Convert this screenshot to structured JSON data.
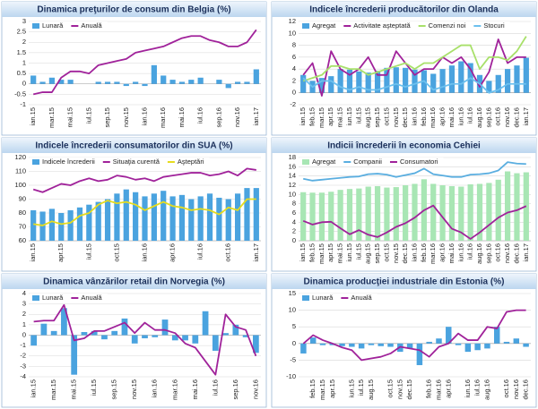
{
  "chart_data": [
    {
      "type": "bar-line",
      "title": "Dinamica preţurilor de consum din Belgia (%)",
      "categories": [
        "ian.15",
        null,
        "mar.15",
        null,
        "mai.15",
        null,
        "iul.15",
        null,
        "sep.15",
        null,
        "nov.15",
        null,
        "ian.16",
        null,
        "mar.16",
        null,
        "mai.16",
        null,
        "iul.16",
        null,
        "sep.16",
        null,
        "nov.16",
        null,
        "ian.17"
      ],
      "series": [
        {
          "name": "Lunară",
          "type": "bar",
          "color": "#4aa3df",
          "values": [
            0.4,
            0.1,
            0.3,
            0.2,
            0.2,
            0.0,
            0.0,
            0.1,
            0.1,
            0.1,
            -0.1,
            0.1,
            -0.1,
            0.9,
            0.4,
            0.2,
            0.1,
            0.2,
            0.3,
            0.0,
            0.2,
            -0.2,
            0.1,
            0.1,
            0.7
          ]
        },
        {
          "name": "Anuală",
          "type": "line",
          "color": "#a0229a",
          "values": [
            -0.5,
            -0.4,
            -0.4,
            0.3,
            0.6,
            0.6,
            0.5,
            0.9,
            1.0,
            1.1,
            1.2,
            1.5,
            1.6,
            1.7,
            1.8,
            2.0,
            2.2,
            2.3,
            2.3,
            2.1,
            2.0,
            1.8,
            1.8,
            2.0,
            2.6
          ]
        }
      ],
      "ylim": [
        -1,
        3
      ],
      "yticks": [
        -1,
        -0.5,
        0,
        0.5,
        1,
        1.5,
        2,
        2.5,
        3
      ],
      "grid": true
    },
    {
      "type": "bar-line",
      "title": "Indicele încrederii producătorilor din Olanda",
      "categories": [
        "ian.15",
        "feb.15",
        "mar.15",
        "apr.15",
        "mai.15",
        "iun.15",
        "iul.15",
        "aug.15",
        "sep.15",
        "oct.15",
        "nov.15",
        "dec.15",
        "ian.16",
        "feb.16",
        "mar.16",
        "apr.16",
        "mai.16",
        "iun.16",
        "iul.16",
        "aug.16",
        "sep.16",
        "oct.16",
        "nov.16",
        "dec.16",
        "ian.17"
      ],
      "series": [
        {
          "name": "Agregat",
          "type": "bar",
          "color": "#4aa3df",
          "values": [
            3.0,
            2.0,
            2.5,
            2.8,
            4.0,
            3.9,
            3.6,
            3.4,
            3.7,
            4.2,
            4.3,
            4.2,
            3.9,
            3.8,
            3.2,
            4.0,
            4.6,
            5.3,
            5.0,
            3.0,
            2.0,
            3.0,
            4.0,
            4.6,
            5.9
          ]
        },
        {
          "name": "Activitate aşteptată",
          "type": "line",
          "color": "#a0229a",
          "values": [
            3,
            5,
            -0.5,
            7,
            4,
            3,
            4,
            6,
            3,
            3,
            7,
            5,
            3,
            4,
            4,
            6,
            5,
            6,
            4,
            1,
            3.5,
            9,
            5,
            6,
            6
          ]
        },
        {
          "name": "Comenzi noi",
          "type": "line",
          "color": "#a8e06a",
          "values": [
            2,
            2.5,
            3,
            4.5,
            4.5,
            4,
            4,
            3,
            3.5,
            4,
            4.5,
            5,
            4,
            5,
            5,
            6,
            7,
            8,
            8,
            4,
            6,
            6,
            5.5,
            7,
            9.5
          ]
        },
        {
          "name": "Stocuri",
          "type": "line",
          "color": "#6cc0ee",
          "values": [
            2.5,
            1,
            2,
            2,
            1,
            0.5,
            1,
            0.5,
            0.5,
            1,
            1.5,
            1,
            1.5,
            2,
            0.5,
            1,
            1.5,
            1.5,
            2.5,
            1.5,
            0,
            0.5,
            1.5,
            1.5,
            1.5
          ]
        }
      ],
      "ylim": [
        -2,
        12
      ],
      "yticks": [
        -2,
        0,
        2,
        4,
        6,
        8,
        10,
        12
      ],
      "grid": true
    },
    {
      "type": "bar-line",
      "title": "Indicele încrederii consumatorilor din SUA (%)",
      "categories": [
        "ian.15",
        null,
        null,
        "apr.15",
        null,
        null,
        "iul.15",
        null,
        null,
        "oct.15",
        null,
        null,
        "ian.16",
        null,
        null,
        "apr.16",
        null,
        null,
        "iul.16",
        null,
        null,
        "oct.16",
        null,
        null,
        "ian.17"
      ],
      "series": [
        {
          "name": "Indicele încrederii",
          "type": "bar",
          "color": "#4aa3df",
          "values": [
            82,
            81,
            83,
            80,
            82,
            84,
            86,
            88,
            90,
            94,
            97,
            95,
            92,
            94,
            96,
            92,
            93,
            90,
            92,
            94,
            91,
            90,
            94,
            98,
            98
          ]
        },
        {
          "name": "Situaţia curentă",
          "type": "line",
          "color": "#a0229a",
          "values": [
            97,
            95,
            98,
            101,
            100,
            103,
            105,
            103,
            104,
            107,
            106,
            104,
            105,
            103,
            106,
            107,
            108,
            109,
            109,
            107,
            108,
            110,
            107,
            112,
            111
          ]
        },
        {
          "name": "Aşteptări",
          "type": "line",
          "color": "#e6dc1e",
          "values": [
            72,
            71,
            74,
            72,
            73,
            78,
            80,
            86,
            89,
            87,
            88,
            86,
            82,
            85,
            88,
            85,
            84,
            82,
            83,
            82,
            79,
            84,
            82,
            90,
            90
          ]
        }
      ],
      "ylim": [
        60,
        120
      ],
      "yticks": [
        60,
        70,
        80,
        90,
        100,
        110,
        120
      ],
      "grid": true
    },
    {
      "type": "bar-line",
      "title": "Indicii încrederii în economia Cehiei",
      "categories": [
        "ian.15",
        "feb.15",
        "mar.15",
        "apr.15",
        "mai.15",
        "iun.15",
        "iul.15",
        "aug.15",
        "sep.15",
        "oct.15",
        "nov.15",
        "dec.15",
        "ian.16",
        "feb.16",
        "mar.16",
        "apr.16",
        "mai.16",
        "iun.16",
        "iul.16",
        "aug.16",
        "sep.16",
        "oct.16",
        "nov.16",
        "dec.16",
        "ian.17"
      ],
      "series": [
        {
          "name": "Agregat",
          "type": "bar",
          "color": "#a8e6b4",
          "values": [
            10.5,
            10.4,
            10.4,
            10.6,
            11,
            11.2,
            11.3,
            11.7,
            11.8,
            11.5,
            11.6,
            12,
            12.3,
            13.3,
            12.3,
            12,
            11.8,
            11.7,
            12.2,
            12.3,
            12.5,
            13.2,
            15,
            14.6,
            14.8
          ]
        },
        {
          "name": "Companii",
          "type": "line",
          "color": "#5aaee0",
          "values": [
            13.4,
            13,
            13.2,
            13.4,
            13.6,
            13.8,
            13.9,
            14.4,
            14.5,
            14.3,
            13.8,
            14.2,
            14.6,
            15.6,
            14.4,
            14.1,
            13.8,
            13.8,
            14.3,
            14.4,
            14.6,
            15.2,
            17,
            16.7,
            16.6
          ]
        },
        {
          "name": "Consumatori",
          "type": "line",
          "color": "#a0229a",
          "values": [
            4.3,
            3.5,
            4,
            4.1,
            2.7,
            1.4,
            2.3,
            1.3,
            0.8,
            1.8,
            3,
            3.8,
            5,
            6.6,
            7.6,
            5.1,
            2.6,
            1.8,
            0.4,
            1.8,
            3.4,
            5,
            6.1,
            6.6,
            7.5
          ]
        }
      ],
      "ylim": [
        0,
        18
      ],
      "yticks": [
        0,
        2,
        4,
        6,
        8,
        10,
        12,
        14,
        16,
        18
      ],
      "grid": true
    },
    {
      "type": "bar-line",
      "title": "Dinamica vânzărilor retail din Norvegia (%)",
      "categories": [
        "ian.15",
        null,
        "mar.15",
        null,
        "mai.15",
        null,
        "iul.15",
        null,
        "sep.15",
        null,
        "nov.15",
        null,
        "ian.16",
        null,
        "mar.16",
        null,
        "mai.16",
        null,
        "iul.16",
        null,
        "sep.16",
        null,
        "nov.16"
      ],
      "series": [
        {
          "name": "Lunară",
          "type": "bar",
          "color": "#4aa3df",
          "values": [
            -1,
            1.1,
            0.4,
            2.6,
            -3.8,
            0.3,
            0.4,
            -0.4,
            0.4,
            1.6,
            -0.8,
            -0.3,
            -0.2,
            1.5,
            -0.5,
            -0.5,
            -0.8,
            2.3,
            -1.5,
            0.2,
            1.0,
            -0.2,
            -1.7
          ]
        },
        {
          "name": "Anuală",
          "type": "line",
          "color": "#a0229a",
          "values": [
            1.3,
            1.4,
            1.4,
            2.9,
            -0.5,
            -0.3,
            0.4,
            0.4,
            0.8,
            1.2,
            0.2,
            1.2,
            0.5,
            0.5,
            0.2,
            -0.8,
            -1.2,
            -2.5,
            -3.8,
            2.0,
            0.8,
            0.5,
            -2.0
          ]
        }
      ],
      "ylim": [
        -4,
        4
      ],
      "yticks": [
        -4,
        -3,
        -2,
        -1,
        0,
        1,
        2,
        3,
        4
      ],
      "grid": true
    },
    {
      "type": "bar-line",
      "title": "Dinamica producţiei industriale din Estonia (%)",
      "categories": [
        null,
        "feb.15",
        "mar.15",
        "apr.15",
        null,
        "iun.15",
        "iul.15",
        "aug.15",
        null,
        "oct.15",
        "nov.15",
        "dec.15",
        null,
        "feb.16",
        "mar.16",
        "apr.16",
        null,
        "iun.16",
        "iul.16",
        "aug.16",
        null,
        "oct.16",
        "nov.16",
        "dec.16"
      ],
      "series": [
        {
          "name": "Lunară",
          "type": "bar",
          "color": "#4aa3df",
          "values": [
            -3,
            1.8,
            -0.5,
            -0.5,
            -0.8,
            -1,
            -1.5,
            -0.5,
            -0.8,
            -1,
            -2.5,
            -1.5,
            -6.5,
            0.5,
            1.5,
            5,
            -0.5,
            -2.5,
            -2,
            -1.5,
            5,
            0.5,
            1.5,
            -1
          ]
        },
        {
          "name": "Anuală",
          "type": "line",
          "color": "#a0229a",
          "values": [
            0,
            2.5,
            1,
            0,
            -1.2,
            -2,
            -5,
            -4.5,
            -4,
            -3,
            -1,
            -1.5,
            -2,
            -4,
            -1,
            0,
            3,
            1,
            1,
            5,
            4.5,
            9.5,
            10,
            10
          ]
        }
      ],
      "ylim": [
        -10,
        15
      ],
      "yticks": [
        -10,
        -5,
        0,
        5,
        10,
        15
      ],
      "grid": true
    }
  ]
}
